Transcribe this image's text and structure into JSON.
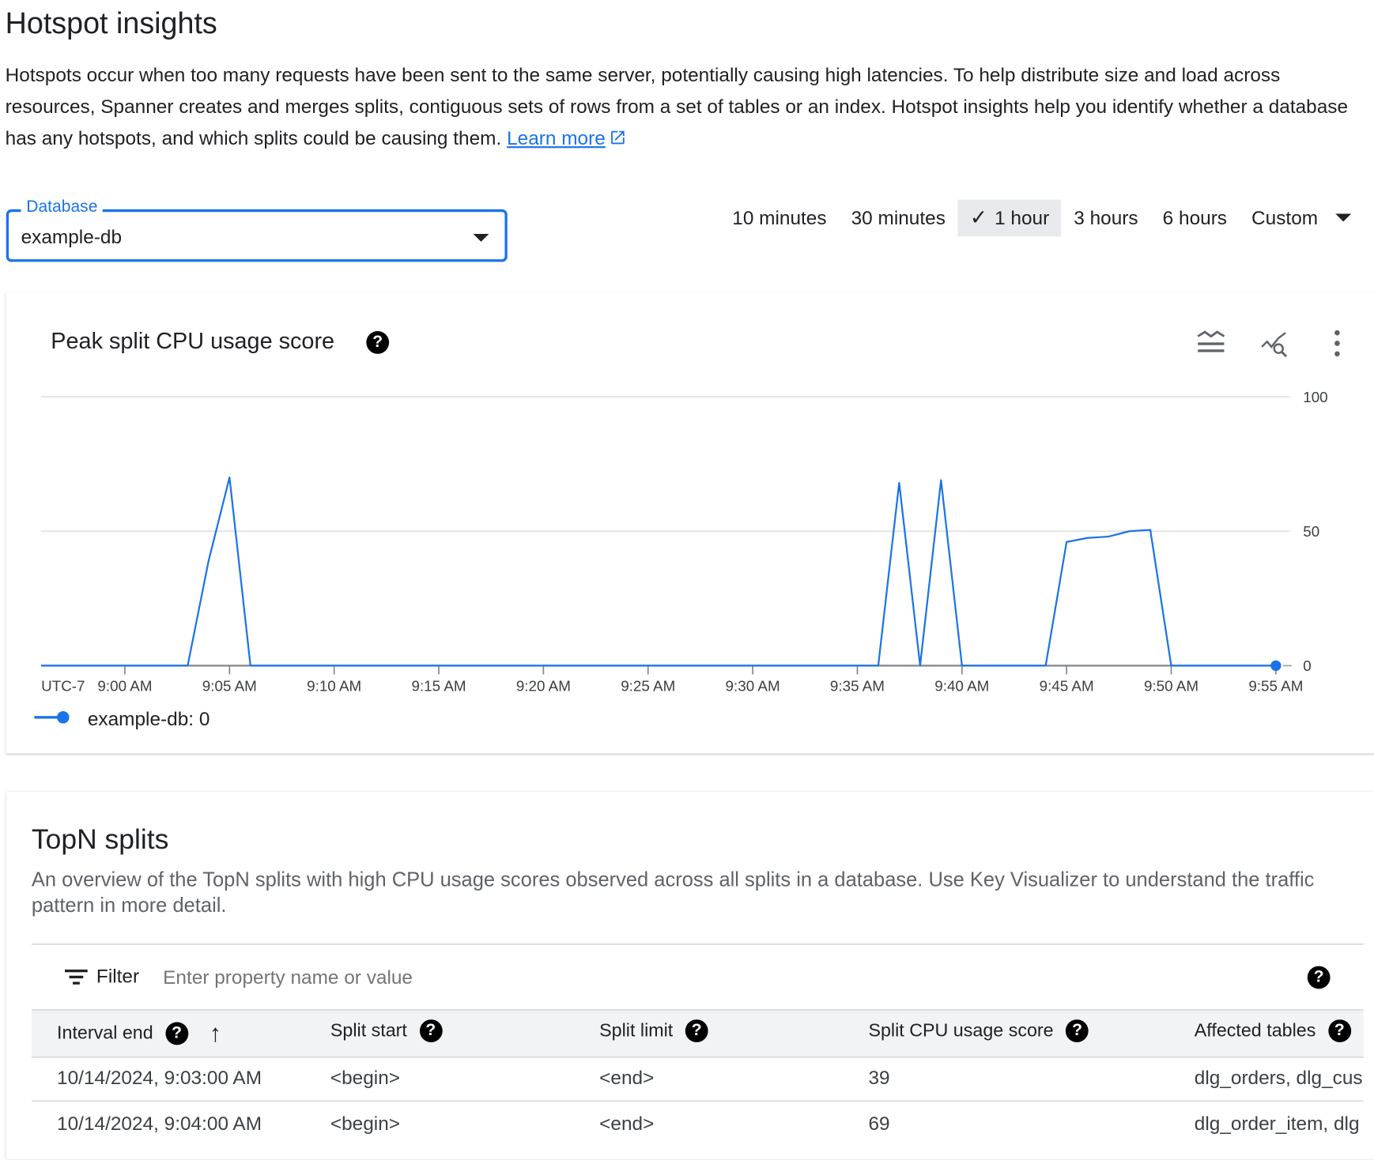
{
  "page": {
    "title": "Hotspot insights",
    "description": "Hotspots occur when too many requests have been sent to the same server, potentially causing high latencies. To help distribute size and load across resources, Spanner creates and merges splits, contiguous sets of rows from a set of tables or an index. Hotspot insights help you identify whether a database has any hotspots, and which splits could be causing them.",
    "learn_more": "Learn more"
  },
  "database": {
    "label": "Database",
    "value": "example-db"
  },
  "time_ranges": [
    {
      "label": "10 minutes",
      "selected": false
    },
    {
      "label": "30 minutes",
      "selected": false
    },
    {
      "label": "1 hour",
      "selected": true
    },
    {
      "label": "3 hours",
      "selected": false
    },
    {
      "label": "6 hours",
      "selected": false
    },
    {
      "label": "Custom",
      "selected": false
    }
  ],
  "chart_card": {
    "title": "Peak split CPU usage score",
    "timezone": "UTC-7",
    "legend": "example-db:",
    "legend_value": "0"
  },
  "chart_data": {
    "type": "line",
    "title": "Peak split CPU usage score",
    "xlabel": "",
    "ylabel": "",
    "ylim": [
      0,
      100
    ],
    "yticks": [
      "0",
      "50",
      "100"
    ],
    "xlim": [
      "8:56",
      "9:55"
    ],
    "xticks": [
      "9:00 AM",
      "9:05 AM",
      "9:10 AM",
      "9:15 AM",
      "9:20 AM",
      "9:25 AM",
      "9:30 AM",
      "9:35 AM",
      "9:40 AM",
      "9:45 AM",
      "9:50 AM",
      "9:55 AM"
    ],
    "grid": true,
    "legend_position": "bottom-left",
    "color": "#1a73e8",
    "series": [
      {
        "name": "example-db",
        "x": [
          "8:56",
          "9:03",
          "9:04",
          "9:05",
          "9:06",
          "9:36",
          "9:37",
          "9:38",
          "9:39",
          "9:40",
          "9:44",
          "9:45",
          "9:46",
          "9:47",
          "9:48",
          "9:49",
          "9:50",
          "9:55"
        ],
        "y": [
          0,
          0,
          39,
          70,
          0,
          0,
          68,
          0,
          69,
          0,
          0,
          46,
          47.5,
          48,
          50,
          50.5,
          0,
          0
        ]
      }
    ]
  },
  "topn": {
    "title": "TopN splits",
    "description": "An overview of the TopN splits with high CPU usage scores observed across all splits in a database. Use Key Visualizer to understand the traffic pattern in more detail.",
    "filter_label": "Filter",
    "filter_placeholder": "Enter property name or value",
    "columns": [
      "Interval end",
      "Split start",
      "Split limit",
      "Split CPU usage score",
      "Affected tables"
    ],
    "rows": [
      [
        "10/14/2024, 9:03:00 AM",
        "<begin>",
        "<end>",
        "39",
        "dlg_orders, dlg_cus"
      ],
      [
        "10/14/2024, 9:04:00 AM",
        "<begin>",
        "<end>",
        "69",
        "dlg_order_item, dlg"
      ]
    ]
  }
}
